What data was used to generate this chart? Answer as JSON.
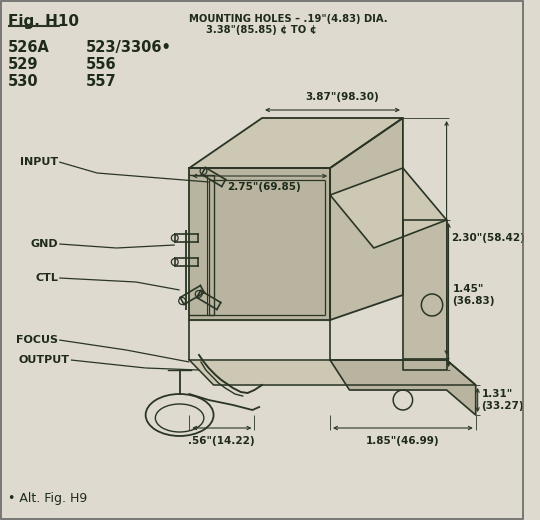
{
  "fig_title": "Fig. H10",
  "mounting_holes_line1": "MOUNTING HOLES – .19\"(4.83) DIA.",
  "mounting_holes_line2": "3.38\"(85.85) ¢ TO ¢",
  "part_numbers_left": [
    "526A",
    "529",
    "530"
  ],
  "part_numbers_right": [
    "523/3306•",
    "556",
    "557"
  ],
  "dim_387": "3.87\"(98.30)",
  "dim_275": "2.75\"(69.85)",
  "dim_230": "2.30\"(58.42)",
  "dim_145": "1.45\"\n(36.83)",
  "dim_131": "1.31\"\n(33.27)",
  "dim_185": "1.85\"(46.99)",
  "dim_056": ".56\"(14.22)",
  "alt_fig": "• Alt. Fig. H9",
  "bg_color": "#dedad0",
  "line_color": "#2a3525",
  "text_color": "#1e2b1a"
}
